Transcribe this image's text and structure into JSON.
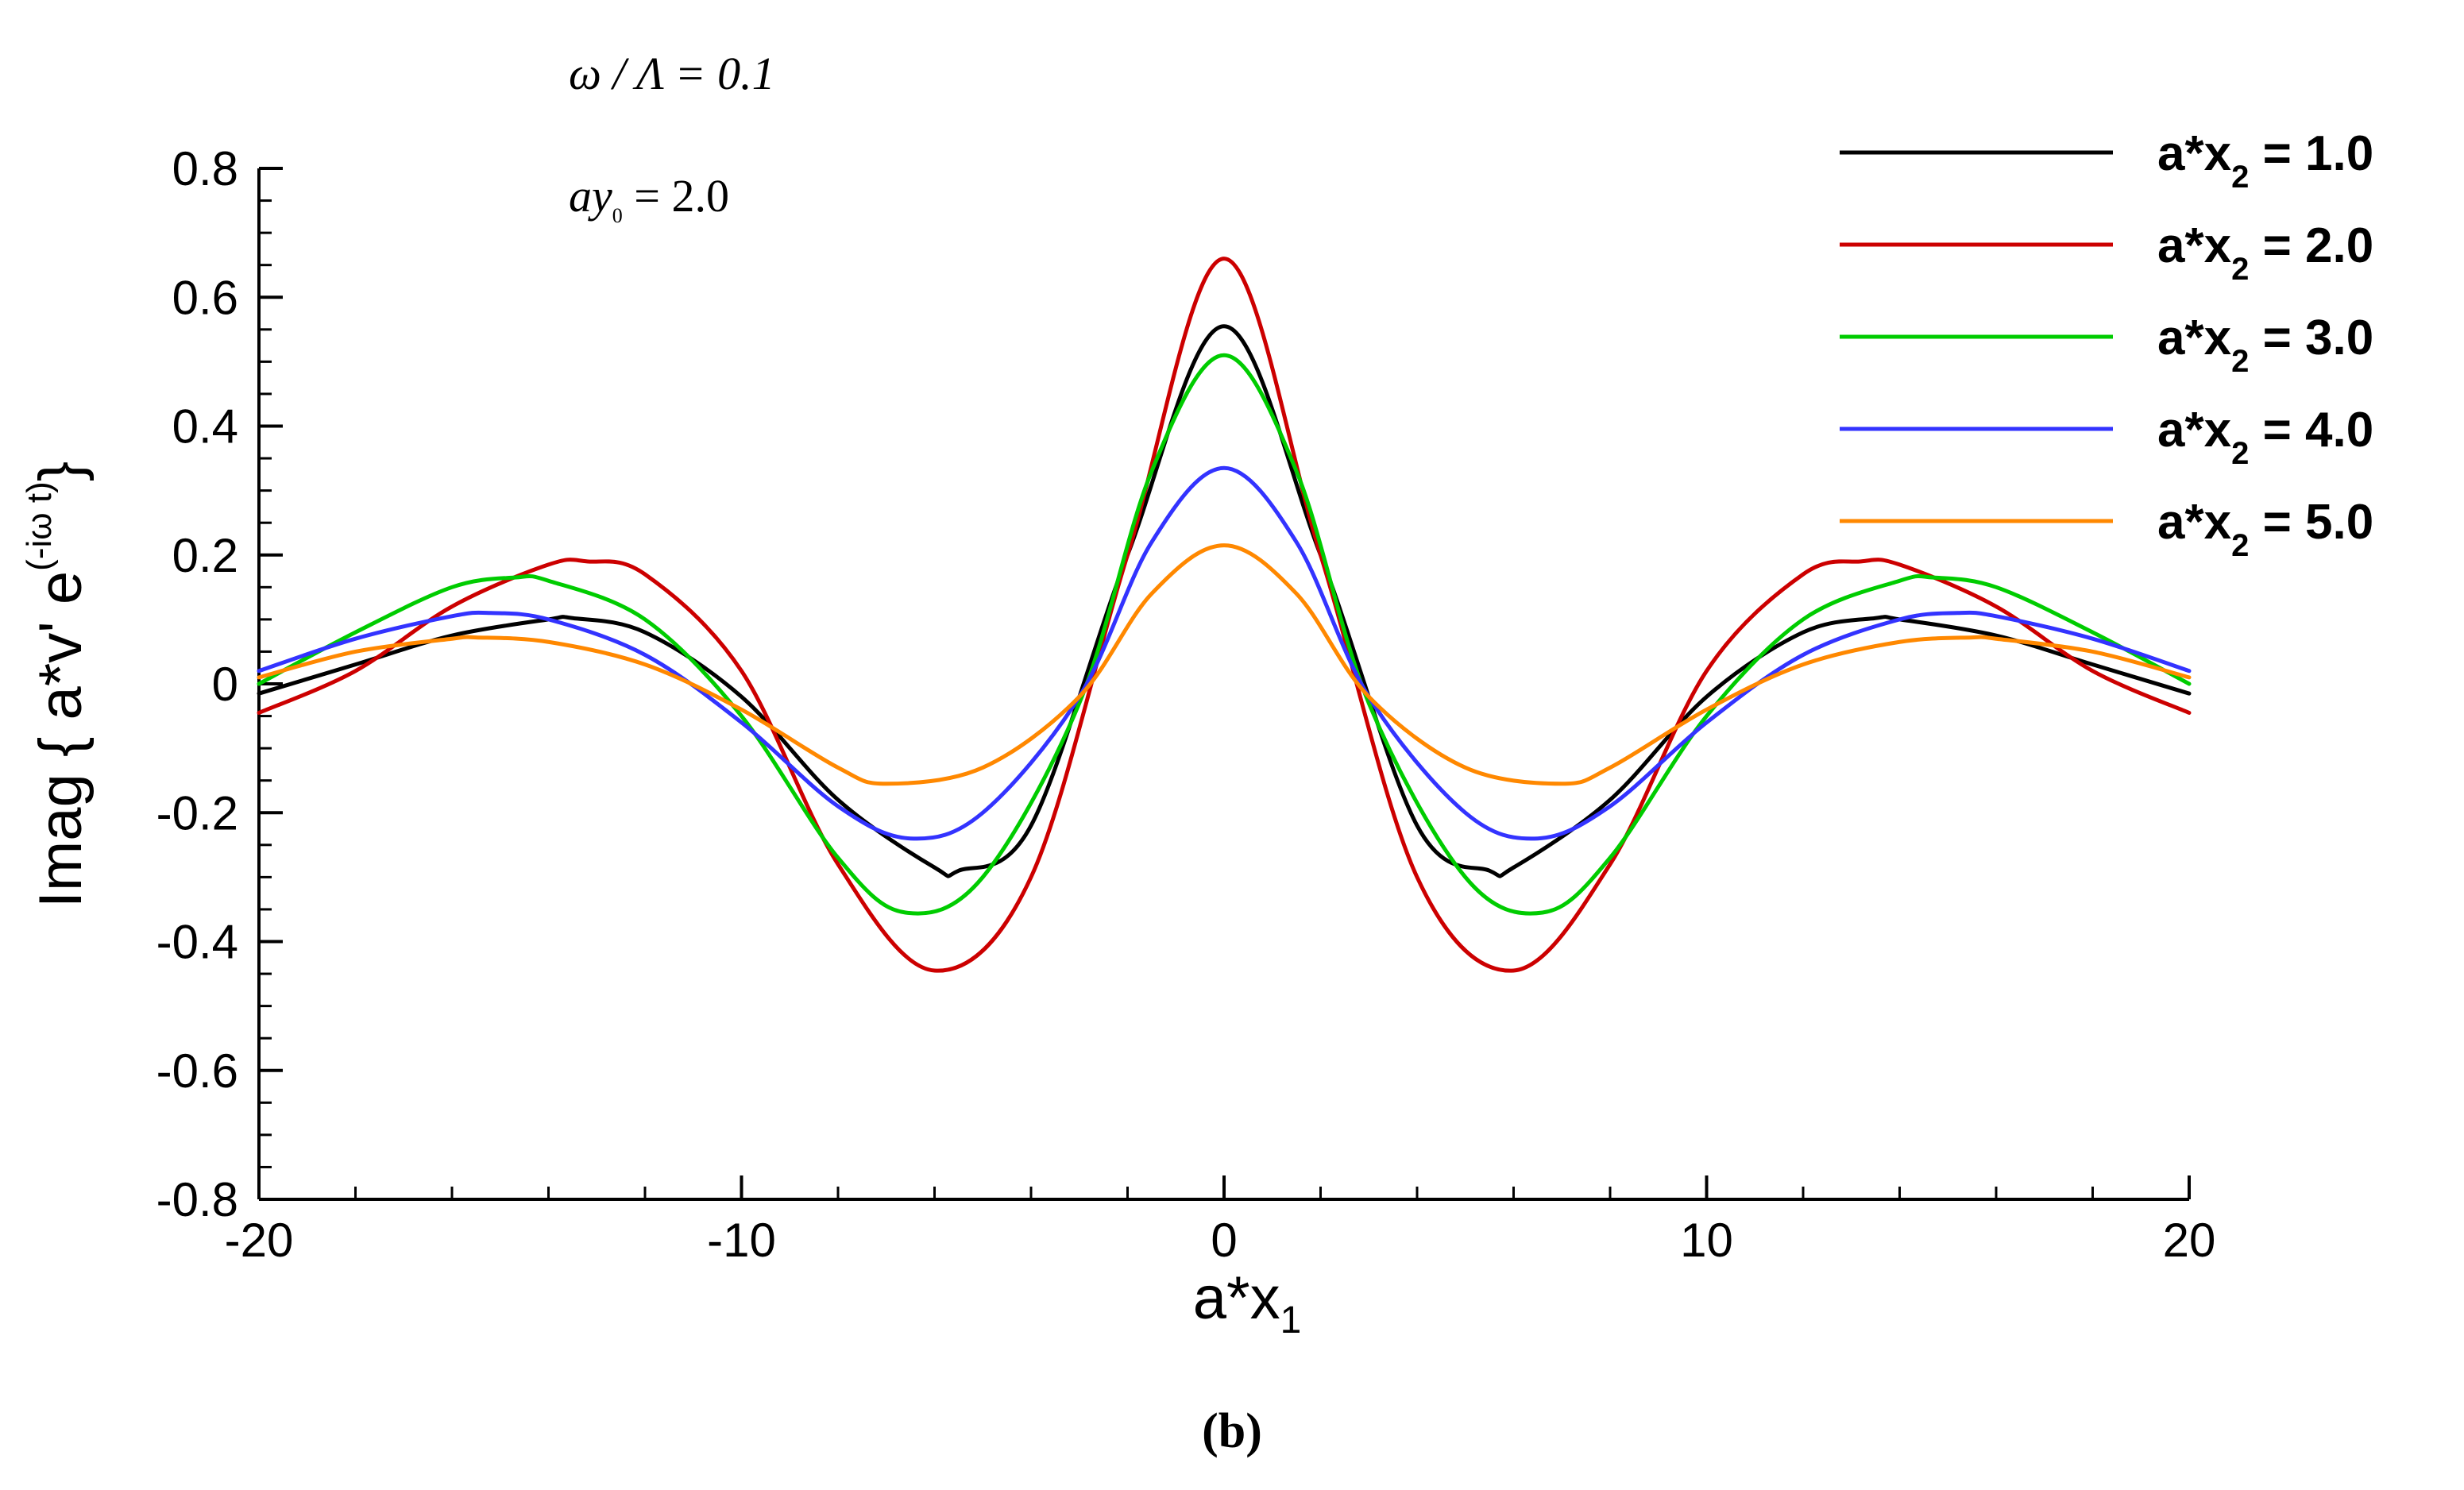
{
  "chart_data": {
    "type": "line",
    "title": "",
    "xlabel": "a*x",
    "xlabel_sub": "1",
    "ylabel": "Imag { a*v' e",
    "ylabel_sup": "(-iω t)",
    "ylabel_close": "}",
    "xlim": [
      -20,
      20
    ],
    "ylim": [
      -0.8,
      0.8
    ],
    "x_major_ticks": [
      -20,
      -10,
      0,
      10,
      20
    ],
    "x_tick_labels": [
      "-20",
      "-10",
      "0",
      "10",
      "20"
    ],
    "y_major_ticks": [
      -0.8,
      -0.6,
      -0.4,
      -0.2,
      0,
      0.2,
      0.4,
      0.6,
      0.8
    ],
    "y_tick_labels": [
      "-0.8",
      "-0.6",
      "-0.4",
      "-0.2",
      "0",
      "0.2",
      "0.4",
      "0.6",
      "0.8"
    ],
    "legend_position": "top-right",
    "annotations": {
      "omega_label": "ω / Λ = 0.1",
      "ay_prefix": "ay",
      "ay_sub": "0",
      "ay_value": " = 2.0"
    },
    "caption": "(b)",
    "series": [
      {
        "name": "a*x",
        "sub": "2",
        "label_value": " = 1.0",
        "color": "#000000",
        "x": [
          -20,
          -18,
          -16,
          -14,
          -13.5,
          -12,
          -10,
          -8,
          -6,
          -5.5,
          -4,
          -2,
          0,
          2,
          4,
          5.5,
          6,
          8,
          10,
          12,
          13.5,
          14,
          16,
          18,
          20
        ],
        "y": [
          -0.015,
          0.03,
          0.075,
          0.1,
          0.102,
          0.08,
          -0.02,
          -0.18,
          -0.285,
          -0.29,
          -0.22,
          0.2,
          0.555,
          0.2,
          -0.22,
          -0.29,
          -0.285,
          -0.18,
          -0.02,
          0.08,
          0.102,
          0.1,
          0.075,
          0.03,
          -0.015
        ]
      },
      {
        "name": "a*x",
        "sub": "2",
        "label_value": " = 2.0",
        "color": "#cc0000",
        "x": [
          -20,
          -18,
          -16,
          -14,
          -13.2,
          -12,
          -10,
          -8,
          -6,
          -4,
          -2,
          0,
          2,
          4,
          6,
          8,
          10,
          12,
          13.2,
          14,
          16,
          18,
          20
        ],
        "y": [
          -0.045,
          0.02,
          0.12,
          0.185,
          0.19,
          0.17,
          0.02,
          -0.28,
          -0.445,
          -0.3,
          0.2,
          0.66,
          0.2,
          -0.3,
          -0.445,
          -0.28,
          0.02,
          0.17,
          0.19,
          0.185,
          0.12,
          0.02,
          -0.045
        ]
      },
      {
        "name": "a*x",
        "sub": "2",
        "label_value": " = 3.0",
        "color": "#00cc00",
        "x": [
          -20,
          -18,
          -16,
          -14.7,
          -14,
          -12,
          -10,
          -8,
          -6.6,
          -5,
          -3,
          -1.5,
          0,
          1.5,
          3,
          5,
          6.6,
          8,
          10,
          12,
          14,
          14.7,
          16,
          18,
          20
        ],
        "y": [
          0.0,
          0.08,
          0.15,
          0.165,
          0.16,
          0.1,
          -0.05,
          -0.27,
          -0.355,
          -0.3,
          -0.03,
          0.33,
          0.51,
          0.33,
          -0.03,
          -0.3,
          -0.355,
          -0.27,
          -0.05,
          0.1,
          0.16,
          0.165,
          0.15,
          0.08,
          0.0
        ]
      },
      {
        "name": "a*x",
        "sub": "2",
        "label_value": " = 4.0",
        "color": "#3333ff",
        "x": [
          -20,
          -18,
          -16,
          -15.2,
          -14,
          -12,
          -10,
          -8,
          -6.5,
          -5,
          -3,
          -1.5,
          0,
          1.5,
          3,
          5,
          6.5,
          8,
          10,
          12,
          14,
          15.2,
          16,
          18,
          20
        ],
        "y": [
          0.02,
          0.07,
          0.105,
          0.11,
          0.1,
          0.045,
          -0.06,
          -0.19,
          -0.24,
          -0.2,
          -0.02,
          0.22,
          0.335,
          0.22,
          -0.02,
          -0.2,
          -0.24,
          -0.19,
          -0.06,
          0.045,
          0.1,
          0.11,
          0.105,
          0.07,
          0.02
        ]
      },
      {
        "name": "a*x",
        "sub": "2",
        "label_value": " = 5.0",
        "color": "#ff8800",
        "x": [
          -20,
          -18,
          -16,
          -15.5,
          -14,
          -12,
          -10,
          -8,
          -7,
          -5,
          -3,
          -1.5,
          0,
          1.5,
          3,
          5,
          7,
          8,
          10,
          12,
          14,
          15.5,
          16,
          18,
          20
        ],
        "y": [
          0.01,
          0.05,
          0.07,
          0.072,
          0.065,
          0.03,
          -0.04,
          -0.13,
          -0.155,
          -0.13,
          -0.02,
          0.14,
          0.215,
          0.14,
          -0.02,
          -0.13,
          -0.155,
          -0.13,
          -0.04,
          0.03,
          0.065,
          0.072,
          0.07,
          0.05,
          0.01
        ]
      }
    ]
  }
}
